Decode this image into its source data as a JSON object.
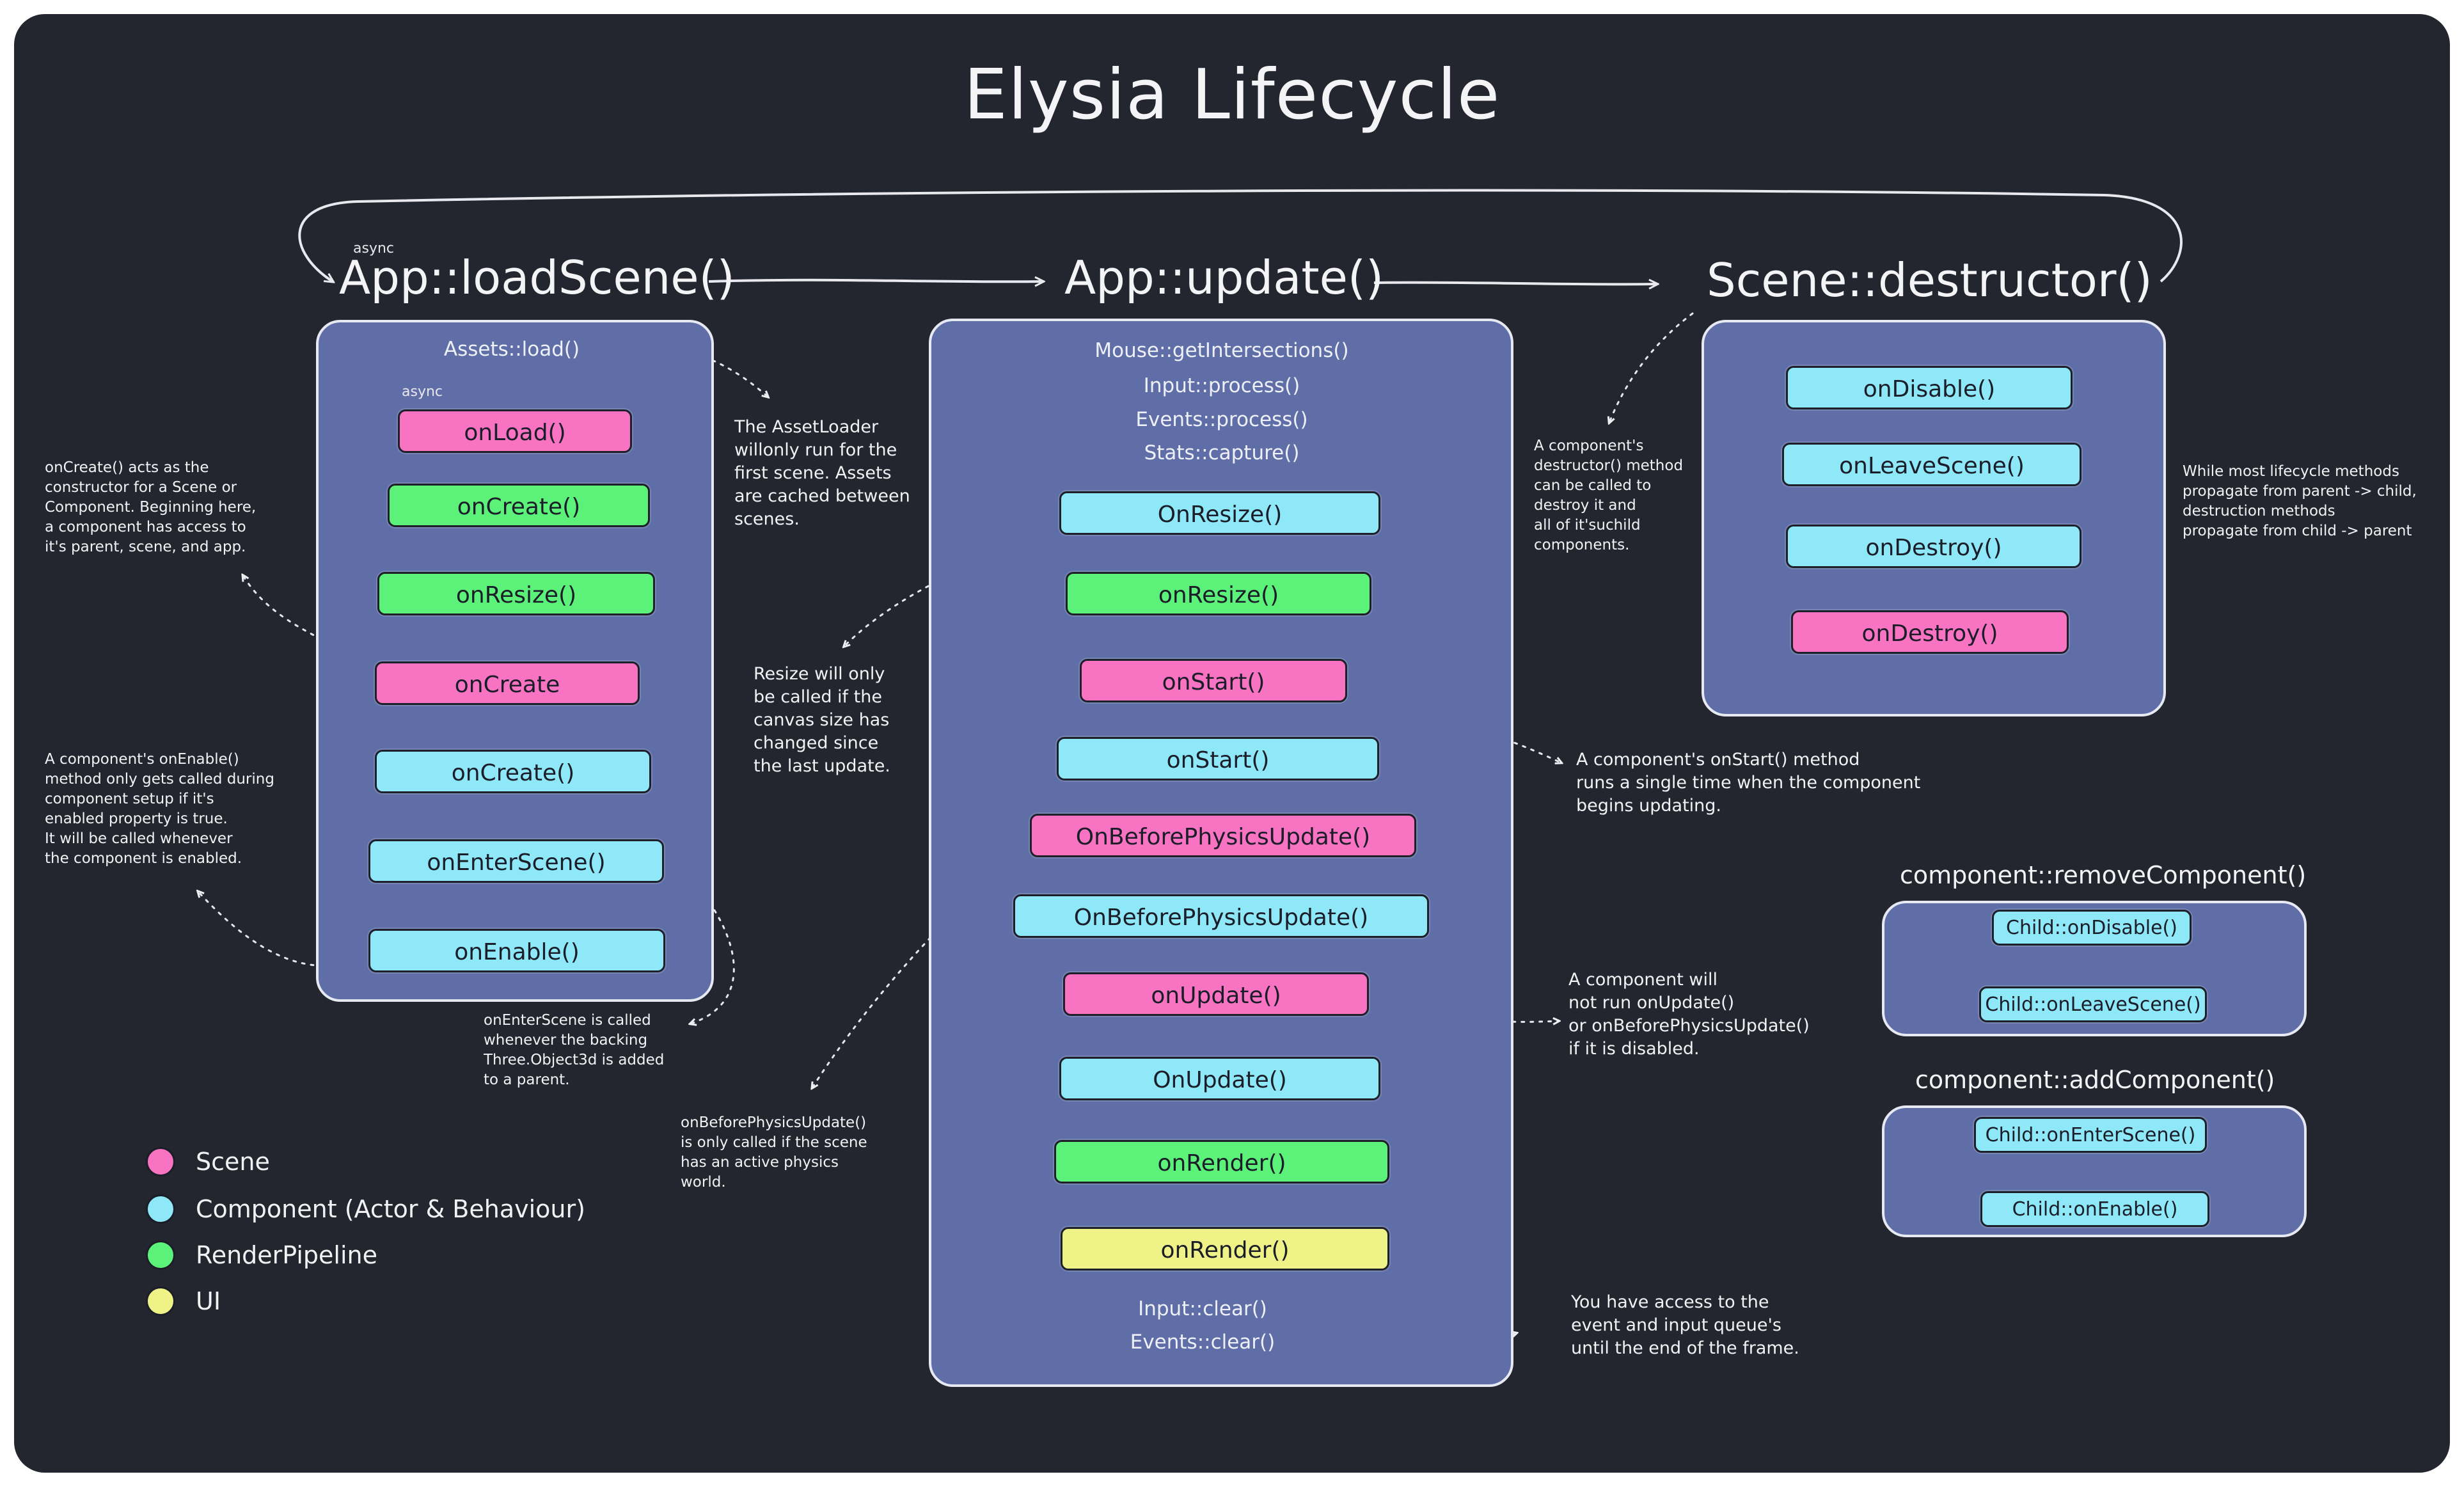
{
  "title": "Elysia Lifecycle",
  "phases": {
    "load": {
      "heading": "App::loadScene()",
      "async_label": "async"
    },
    "update": {
      "heading": "App::update()"
    },
    "destroy": {
      "heading": "Scene::destructor()"
    }
  },
  "load_panel": {
    "top_step": "Assets::load()",
    "async_label": "async",
    "nodes": [
      {
        "label": "onLoad()",
        "kind": "Scene",
        "color": "#f873c2"
      },
      {
        "label": "onCreate()",
        "kind": "RenderPipeline",
        "color": "#5cf27a"
      },
      {
        "label": "onResize()",
        "kind": "RenderPipeline",
        "color": "#5cf27a"
      },
      {
        "label": "onCreate",
        "kind": "Scene",
        "color": "#f873c2"
      },
      {
        "label": "onCreate()",
        "kind": "Component (Actor & Behaviour)",
        "color": "#8ee8f8"
      },
      {
        "label": "onEnterScene()",
        "kind": "Component (Actor & Behaviour)",
        "color": "#8ee8f8"
      },
      {
        "label": "onEnable()",
        "kind": "Component (Actor & Behaviour)",
        "color": "#8ee8f8"
      }
    ]
  },
  "update_panel": {
    "top_steps": [
      "Mouse::getIntersections()",
      "Input::process()",
      "Events::process()",
      "Stats::capture()"
    ],
    "nodes": [
      {
        "label": "OnResize()",
        "kind": "Component (Actor & Behaviour)",
        "color": "#8ee8f8"
      },
      {
        "label": "onResize()",
        "kind": "RenderPipeline",
        "color": "#5cf27a"
      },
      {
        "label": "onStart()",
        "kind": "Scene",
        "color": "#f873c2"
      },
      {
        "label": "onStart()",
        "kind": "Component (Actor & Behaviour)",
        "color": "#8ee8f8"
      },
      {
        "label": "OnBeforePhysicsUpdate()",
        "kind": "Scene",
        "color": "#f873c2"
      },
      {
        "label": "OnBeforePhysicsUpdate()",
        "kind": "Component (Actor & Behaviour)",
        "color": "#8ee8f8"
      },
      {
        "label": "onUpdate()",
        "kind": "Scene",
        "color": "#f873c2"
      },
      {
        "label": "OnUpdate()",
        "kind": "Component (Actor & Behaviour)",
        "color": "#8ee8f8"
      },
      {
        "label": "onRender()",
        "kind": "RenderPipeline",
        "color": "#5cf27a"
      },
      {
        "label": "onRender()",
        "kind": "UI",
        "color": "#eff387"
      }
    ],
    "bottom_steps": [
      "Input::clear()",
      "Events::clear()"
    ]
  },
  "destroy_panel": {
    "nodes": [
      {
        "label": "onDisable()",
        "kind": "Component (Actor & Behaviour)",
        "color": "#8ee8f8"
      },
      {
        "label": "onLeaveScene()",
        "kind": "Component (Actor & Behaviour)",
        "color": "#8ee8f8"
      },
      {
        "label": "onDestroy()",
        "kind": "Component (Actor & Behaviour)",
        "color": "#8ee8f8"
      },
      {
        "label": "onDestroy()",
        "kind": "Scene",
        "color": "#f873c2"
      }
    ]
  },
  "remove_component": {
    "heading": "component::removeComponent()",
    "nodes": [
      "Child::onDisable()",
      "Child::onLeaveScene()"
    ]
  },
  "add_component": {
    "heading": "component::addComponent()",
    "nodes": [
      "Child::onEnterScene()",
      "Child::onEnable()"
    ]
  },
  "notes": {
    "asset_loader": "The AssetLoader\nwillonly run for the\nfirst scene. Assets\nare cached between\nscenes.",
    "on_create": "onCreate() acts as the\nconstructor for a Scene or\nComponent. Beginning here,\na component has access to\nit's parent, scene, and app.",
    "on_enable": "A component's onEnable()\nmethod only gets called during\ncomponent setup if it's\nenabled property is true.\nIt will be called whenever\nthe component is enabled.",
    "on_enter_scene": "onEnterScene is called\nwhenever the backing\nThree.Object3d is added\nto a parent.",
    "resize": "Resize will only\nbe called if the\ncanvas size has\nchanged since\nthe last update.",
    "before_physics": "onBeforePhysicsUpdate()\nis only called if the scene\nhas an active physics\nworld.",
    "destructor": "A component's\ndestructor() method\ncan be called to\ndestroy it and\nall of it'suchild\ncomponents.",
    "propagation": "While most lifecycle methods\npropagate from parent -> child,\ndestruction methods\npropagate from child -> parent",
    "on_start": "A component's onStart() method\nruns a single time when the component\nbegins updating.",
    "disabled": "A component will\nnot run onUpdate()\nor onBeforePhysicsUpdate()\nif it is disabled.",
    "frame_end": "You have access to the\nevent and input queue's\nuntil the end of the frame."
  },
  "legend": [
    {
      "label": "Scene",
      "color": "#f873c2"
    },
    {
      "label": "Component (Actor & Behaviour)",
      "color": "#8ee8f8"
    },
    {
      "label": "RenderPipeline",
      "color": "#5cf27a"
    },
    {
      "label": "UI",
      "color": "#eff387"
    }
  ],
  "colors": {
    "background": "#24262f",
    "panel": "#5f6ea6",
    "scene": "#f873c2",
    "component": "#8ee8f8",
    "render_pipeline": "#5cf27a",
    "ui": "#eff387"
  }
}
